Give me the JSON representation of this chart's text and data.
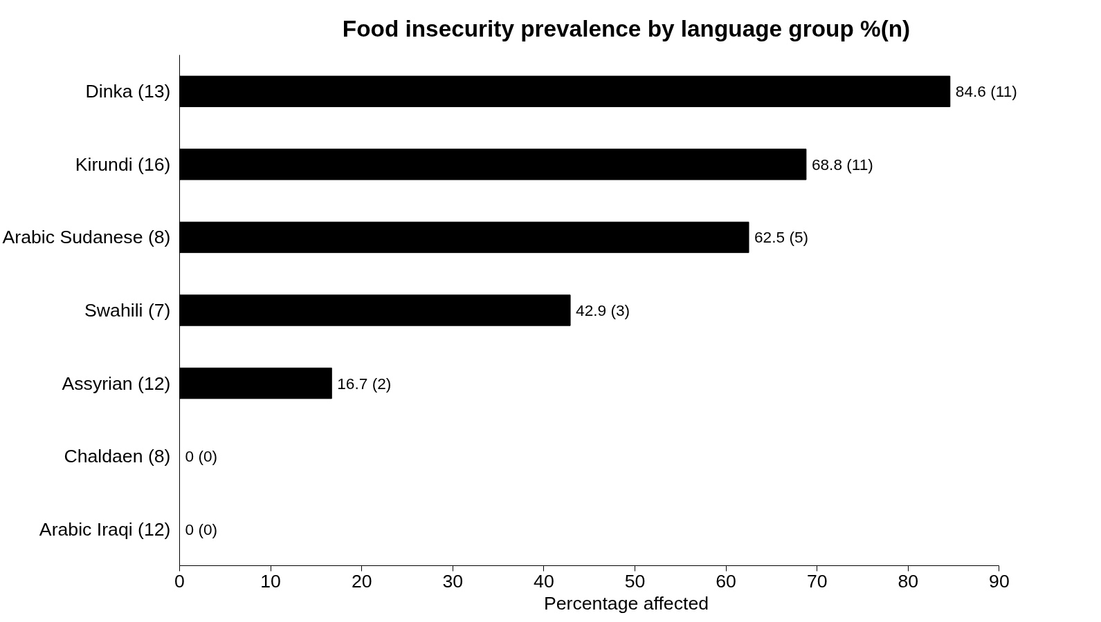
{
  "chart_data": {
    "type": "bar",
    "orientation": "horizontal",
    "title": "Food insecurity prevalence by language group %(n)",
    "xlabel": "Percentage affected",
    "categories": [
      "Dinka (13)",
      "Kirundi (16)",
      "Arabic Sudanese (8)",
      "Swahili (7)",
      "Assyrian (12)",
      "Chaldaen (8)",
      "Arabic Iraqi (12)"
    ],
    "values": [
      84.6,
      68.8,
      62.5,
      42.9,
      16.7,
      0,
      0
    ],
    "value_labels": [
      "84.6 (11)",
      "68.8 (11)",
      "62.5 (5)",
      "42.9 (3)",
      "16.7 (2)",
      "0 (0)",
      "0 (0)"
    ],
    "color": "#000000",
    "xlim": [
      0,
      90
    ],
    "xticks": [
      0,
      10,
      20,
      30,
      40,
      50,
      60,
      70,
      80,
      90
    ],
    "grid": false
  }
}
